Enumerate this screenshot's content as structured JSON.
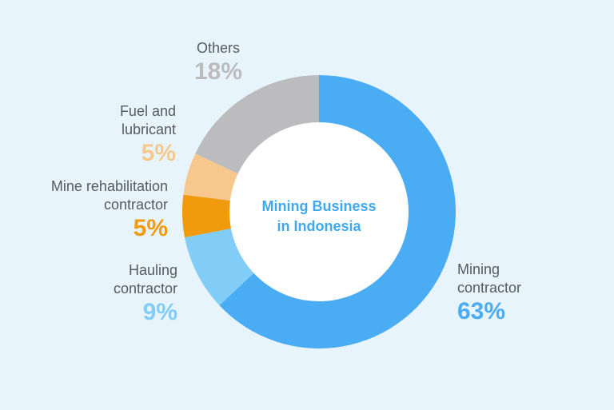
{
  "chart_data": {
    "type": "pie",
    "style": "donut",
    "title": "Mining Business in Indonesia",
    "center_lines": [
      "Mining Business",
      "in Indonesia"
    ],
    "segments": [
      {
        "name": "Mining contractor",
        "name_lines": [
          "Mining",
          "contractor"
        ],
        "value": 63,
        "label": "63%",
        "color": "#4aacf2"
      },
      {
        "name": "Hauling contractor",
        "name_lines": [
          "Hauling",
          "contractor"
        ],
        "value": 9,
        "label": "9%",
        "color": "#82cdf8"
      },
      {
        "name": "Mine rehabilitation contractor",
        "name_lines": [
          "Mine rehabilitation",
          "contractor"
        ],
        "value": 5,
        "label": "5%",
        "color": "#f09a0c"
      },
      {
        "name": "Fuel and lubricant",
        "name_lines": [
          "Fuel and",
          "lubricant"
        ],
        "value": 5,
        "label": "5%",
        "color": "#f6c88d"
      },
      {
        "name": "Others",
        "name_lines": [
          "Others"
        ],
        "value": 18,
        "label": "18%",
        "color": "#bcbcbf"
      }
    ],
    "legend": "none"
  }
}
